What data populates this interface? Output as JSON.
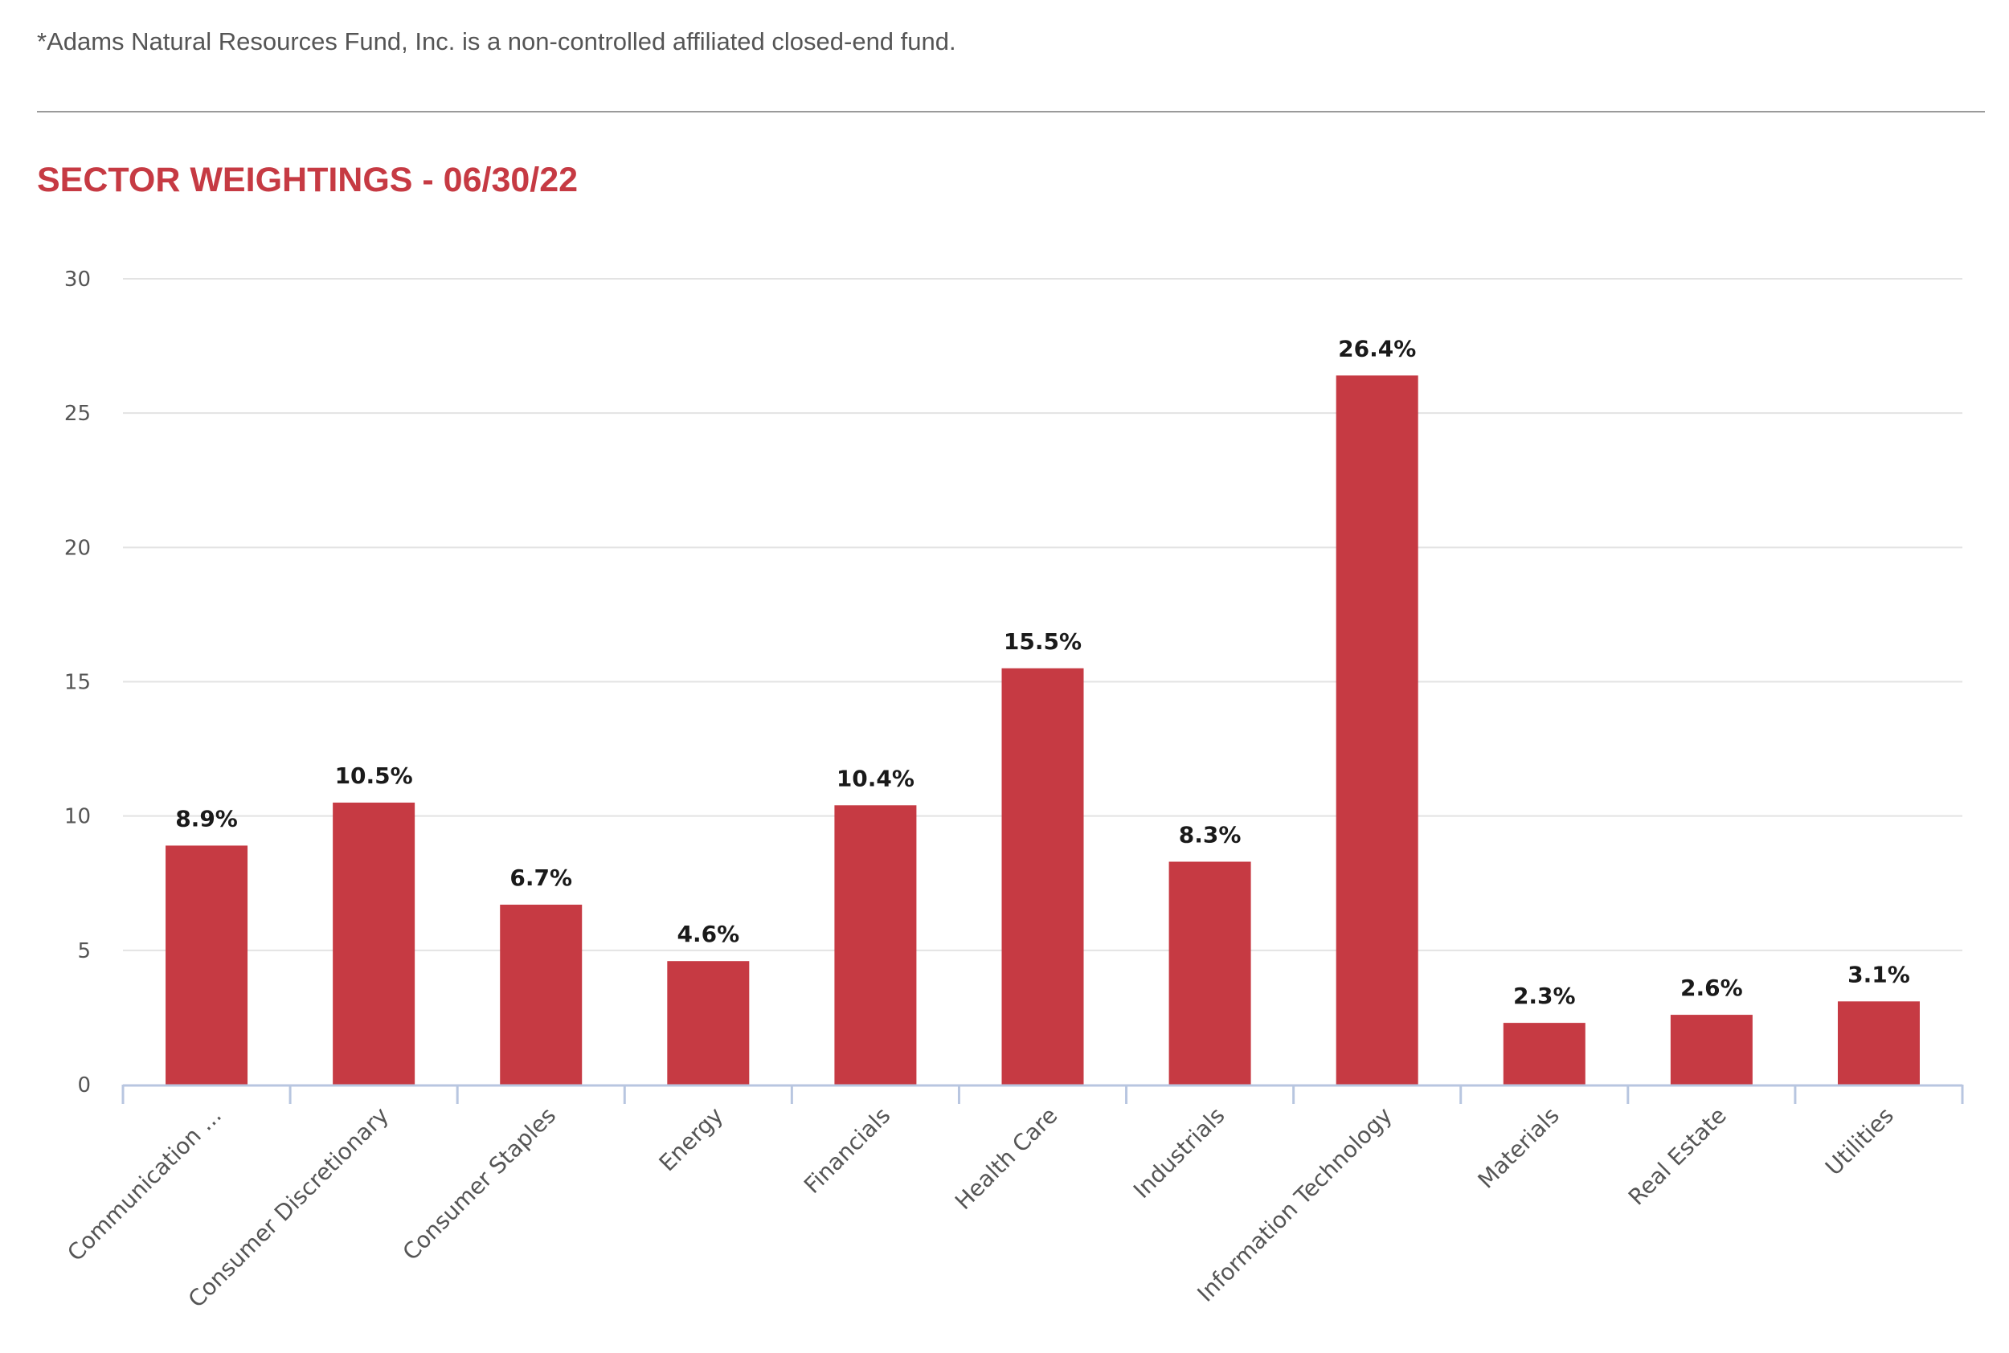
{
  "footnote": "*Adams Natural Resources Fund, Inc. is a non-controlled affiliated closed-end fund.",
  "section_title": "SECTOR WEIGHTINGS - 06/30/22",
  "colors": {
    "bar": "#c63a43",
    "title": "#c63a43",
    "gridline": "#e3e3e3",
    "axis": "#b8c6e0"
  },
  "chart_data": {
    "type": "bar",
    "title": "SECTOR WEIGHTINGS - 06/30/22",
    "xlabel": "",
    "ylabel": "",
    "ylim": [
      0,
      30
    ],
    "yticks": [
      0,
      5,
      10,
      15,
      20,
      25,
      30
    ],
    "grid": true,
    "categories": [
      "Communication ...",
      "Consumer Discretionary",
      "Consumer Staples",
      "Energy",
      "Financials",
      "Health Care",
      "Industrials",
      "Information Technology",
      "Materials",
      "Real Estate",
      "Utilities"
    ],
    "values": [
      8.9,
      10.5,
      6.7,
      4.6,
      10.4,
      15.5,
      8.3,
      26.4,
      2.3,
      2.6,
      3.1
    ],
    "data_labels": [
      "8.9%",
      "10.5%",
      "6.7%",
      "4.6%",
      "10.4%",
      "15.5%",
      "8.3%",
      "26.4%",
      "2.3%",
      "2.6%",
      "3.1%"
    ]
  }
}
